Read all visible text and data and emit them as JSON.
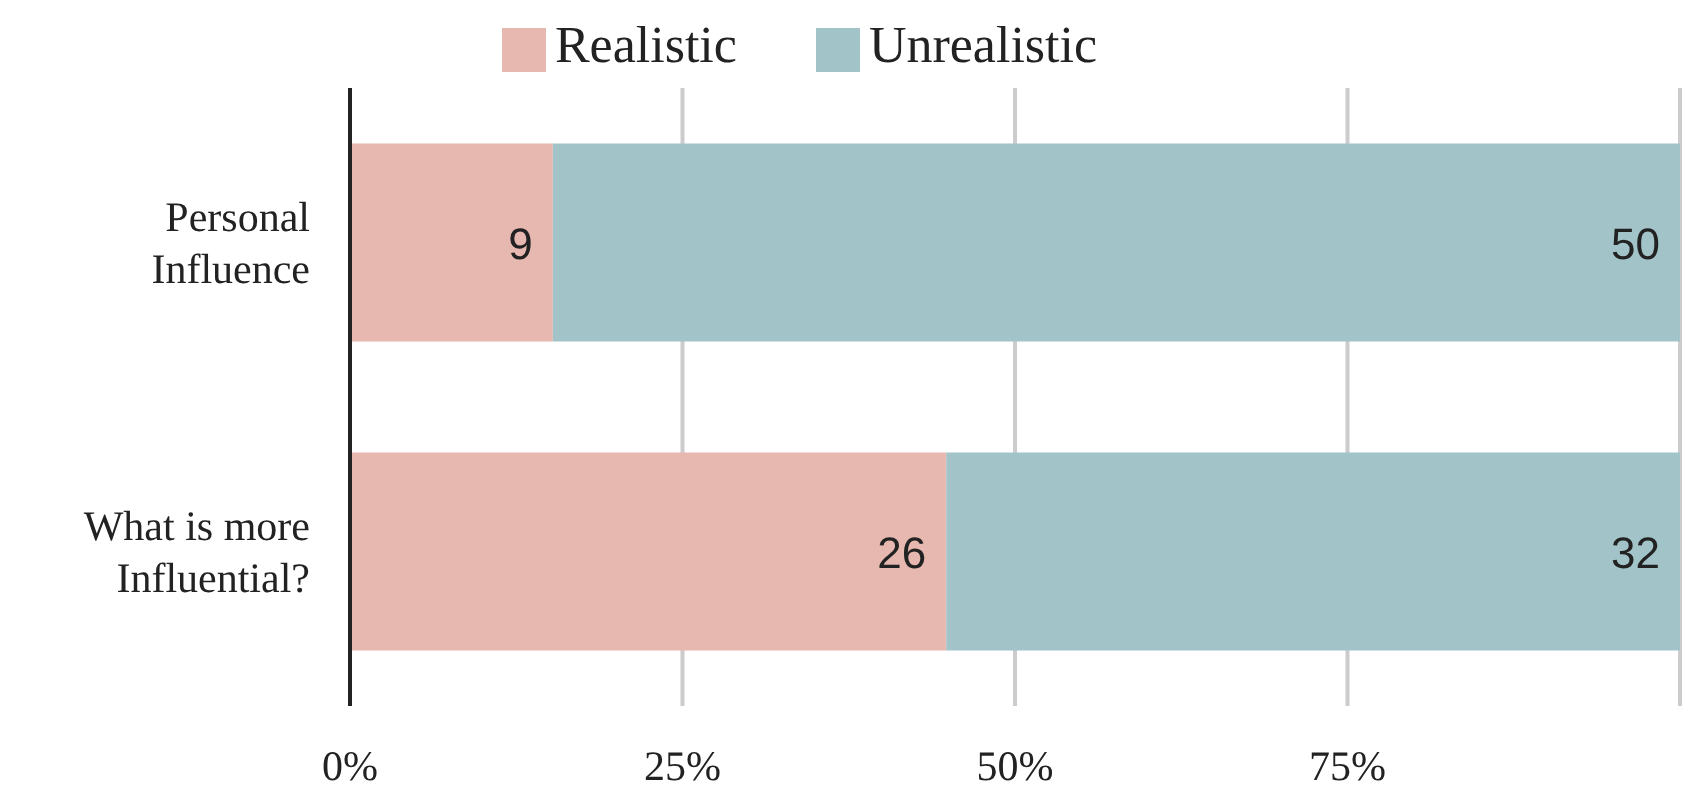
{
  "chart_data": {
    "type": "bar",
    "orientation": "horizontal",
    "stacked": true,
    "categories": [
      "Personal Influence",
      "What is more Influential?"
    ],
    "series": [
      {
        "name": "Realistic",
        "color": "#e6b8af",
        "values": [
          15.25,
          44.83
        ]
      },
      {
        "name": "Unrealistic",
        "color": "#a2c4c9",
        "values": [
          84.75,
          55.17
        ]
      }
    ],
    "xlim": [
      0,
      100
    ],
    "xticks": [
      {
        "value": 0,
        "label": "0%"
      },
      {
        "value": 25,
        "label": "25%"
      },
      {
        "value": 50,
        "label": "50%"
      },
      {
        "value": 75,
        "label": "75%"
      }
    ],
    "annotations": [
      {
        "text": "9",
        "x": 15.25,
        "y": "Personal Influence"
      },
      {
        "text": "50",
        "x": 100,
        "y": "Personal Influence"
      },
      {
        "text": "26",
        "x": 44.83,
        "y": "What is more Influential?"
      },
      {
        "text": "32",
        "x": 100,
        "y": "What is more Influential?"
      }
    ],
    "grid": "x",
    "legend": "top"
  }
}
